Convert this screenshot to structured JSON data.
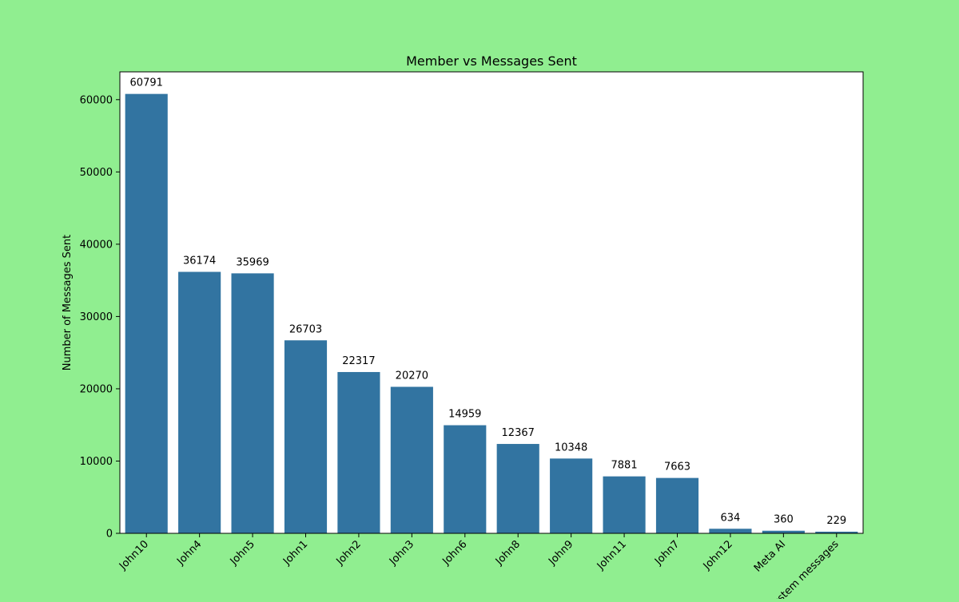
{
  "chart_data": {
    "type": "bar",
    "title": "Member vs Messages Sent",
    "xlabel": "",
    "ylabel": "Number of Messages Sent",
    "categories": [
      "John10",
      "John4",
      "John5",
      "John1",
      "John2",
      "John3",
      "John6",
      "John8",
      "John9",
      "John11",
      "John7",
      "John12",
      "Meta AI",
      "System messages"
    ],
    "values": [
      60791,
      36174,
      35969,
      26703,
      22317,
      20270,
      14959,
      12367,
      10348,
      7881,
      7663,
      634,
      360,
      229
    ],
    "ylim": [
      0,
      63845
    ],
    "yticks": [
      0,
      10000,
      20000,
      30000,
      40000,
      50000,
      60000
    ],
    "grid": false,
    "legend": "none",
    "colors": {
      "background": "#90ee90",
      "plot_area": "#ffffff",
      "bar": "#3274a1",
      "text": "#000000"
    }
  }
}
